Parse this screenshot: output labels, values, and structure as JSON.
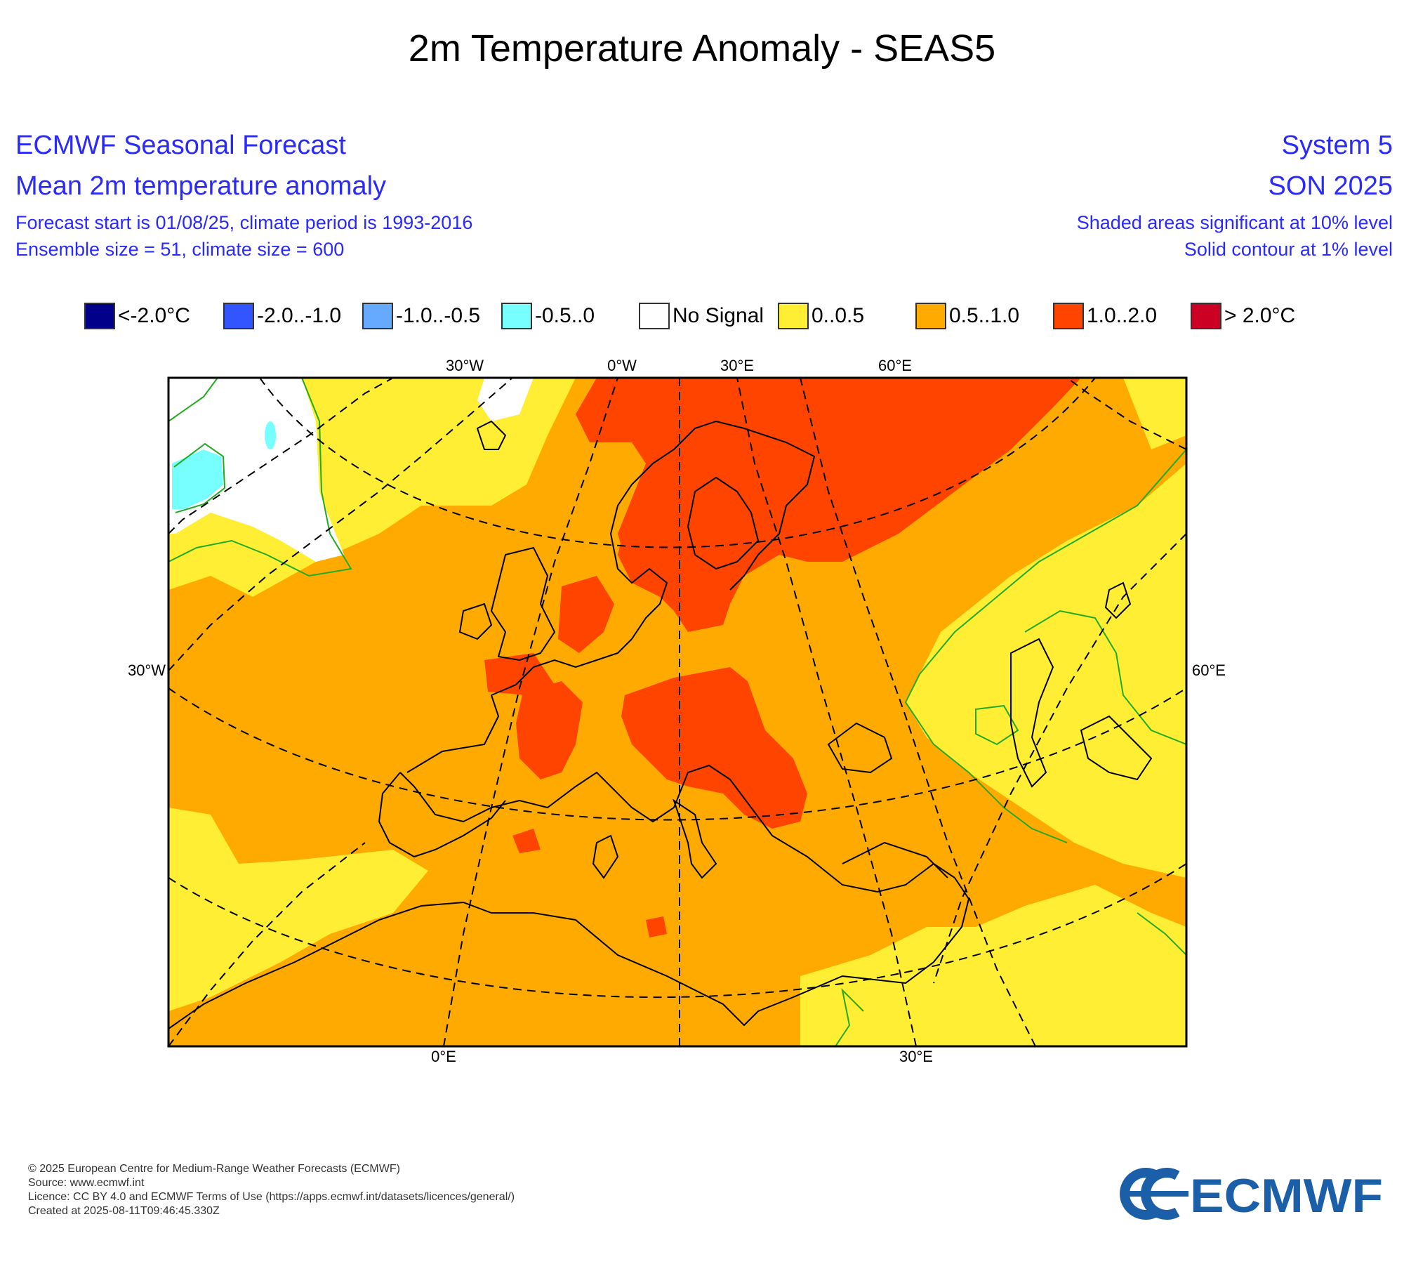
{
  "page_title": "2m Temperature Anomaly - SEAS5",
  "header": {
    "left": {
      "title": "ECMWF Seasonal Forecast",
      "subtitle": "Mean 2m temperature anomaly",
      "line1": "Forecast start is 01/08/25, climate period is 1993-2016",
      "line2": "Ensemble size = 51, climate size = 600"
    },
    "right": {
      "title": "System 5",
      "subtitle": "SON 2025",
      "line1": "Shaded areas significant at 10% level",
      "line2": "Solid contour at 1% level"
    }
  },
  "legend": [
    {
      "label": "<-2.0°C",
      "color": "#00008b"
    },
    {
      "label": "-2.0..-1.0",
      "color": "#3355ff"
    },
    {
      "label": "-1.0..-0.5",
      "color": "#66aaff"
    },
    {
      "label": "-0.5..0",
      "color": "#77ffff"
    },
    {
      "label": "No Signal",
      "color": "#ffffff"
    },
    {
      "label": "0..0.5",
      "color": "#ffee33"
    },
    {
      "label": "0.5..1.0",
      "color": "#ffaa00"
    },
    {
      "label": "1.0..2.0",
      "color": "#ff4400"
    },
    {
      "label": "> 2.0°C",
      "color": "#cc0022"
    }
  ],
  "map_labels": {
    "top": [
      "30°W",
      "0°W",
      "30°E",
      "60°E"
    ],
    "left": "30°W",
    "right": "60°E",
    "bottom": [
      "0°E",
      "30°E"
    ]
  },
  "footer": {
    "copyright": "© 2025 European Centre for Medium-Range Weather Forecasts (ECMWF)",
    "source": "Source: www.ecmwf.int",
    "licence": "Licence: CC BY 4.0 and ECMWF Terms of Use (https://apps.ecmwf.int/datasets/licences/general/)",
    "created": "Created at 2025-08-11T09:46:45.330Z"
  },
  "logo_text": "ECMWF",
  "colors": {
    "header_text": "#2a2aff",
    "contour": "#22aa22",
    "logo": "#1a5fa8"
  }
}
